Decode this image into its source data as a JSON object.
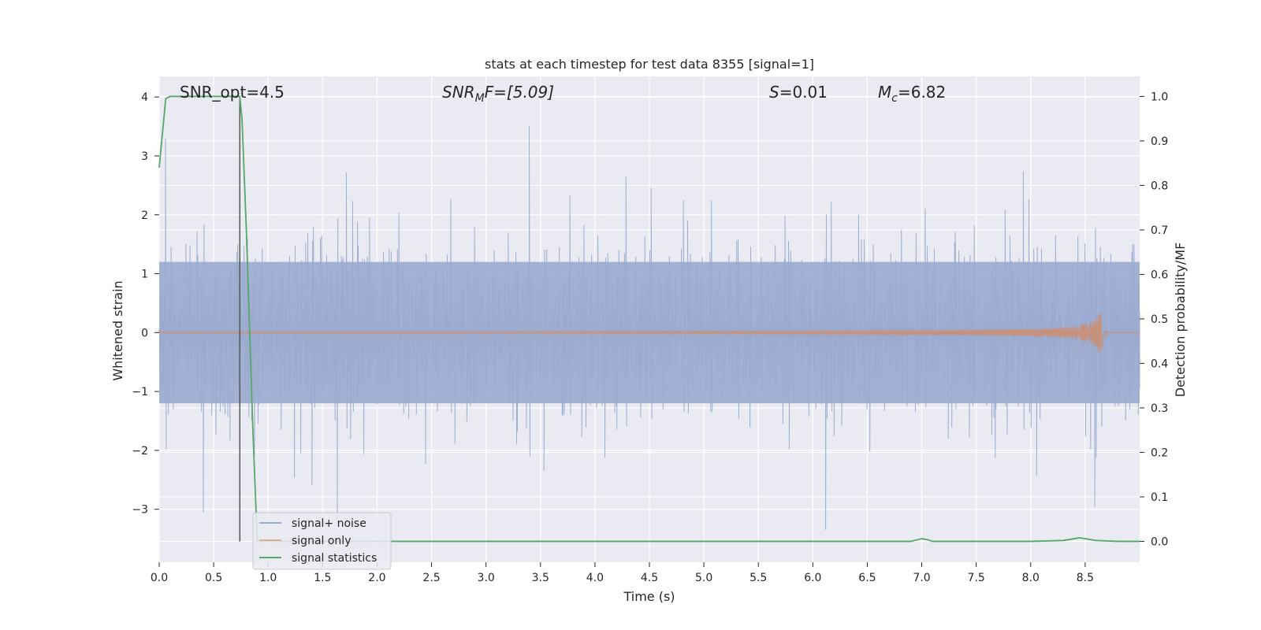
{
  "chart_data": {
    "type": "line",
    "title": "stats at each timestep for test data 8355 [signal=1]",
    "xlabel": "Time (s)",
    "ylabel_left": "Whitened strain",
    "ylabel_right": "Detection probability/MF",
    "xlim": [
      0.0,
      9.0
    ],
    "ylim_left": [
      -3.9,
      4.35
    ],
    "ylim_right": [
      -0.047,
      1.045
    ],
    "x_ticks": [
      "0.0",
      "0.5",
      "1.0",
      "1.5",
      "2.0",
      "2.5",
      "3.0",
      "3.5",
      "4.0",
      "4.5",
      "5.0",
      "5.5",
      "6.0",
      "6.5",
      "7.0",
      "7.5",
      "8.0",
      "8.5"
    ],
    "y_left_ticks": [
      "−3",
      "−2",
      "−1",
      "0",
      "1",
      "2",
      "3",
      "4"
    ],
    "y_right_ticks": [
      "0.0",
      "0.1",
      "0.2",
      "0.3",
      "0.4",
      "0.5",
      "0.6",
      "0.7",
      "0.8",
      "0.9",
      "1.0"
    ],
    "grid": true,
    "legend_position": "lower-left",
    "annotations": {
      "snr_opt": "SNR_opt=4.5",
      "snr_mf_main": "SNR",
      "snr_mf_sub": "M",
      "snr_mf_rest": "F=[5.09]",
      "s_main": "S",
      "s_rest": "=0.01",
      "mc_main": "M",
      "mc_sub": "c",
      "mc_rest": "=6.82"
    },
    "vline_x": 0.74,
    "series": [
      {
        "name": "signal+ noise",
        "axis": "left",
        "color": "#9aabcf",
        "description_values": {
          "envelope_min": -3.6,
          "envelope_max": 4.0,
          "typical_range": [
            -1.4,
            1.6
          ]
        }
      },
      {
        "name": "signal only",
        "axis": "left",
        "color": "#dd8452",
        "chirp": {
          "start_x": 0.0,
          "merger_x": 8.65,
          "peak_amplitude": 0.35,
          "end_x": 9.0
        }
      },
      {
        "name": "signal statistics",
        "axis": "right",
        "color": "#55a868",
        "x": [
          0.0,
          0.06,
          0.1,
          0.2,
          0.5,
          0.74,
          0.76,
          0.8,
          0.86,
          0.9,
          1.0,
          2.0,
          6.9,
          6.95,
          7.0,
          7.05,
          7.1,
          7.2,
          8.0,
          8.3,
          8.4,
          8.45,
          8.5,
          8.6,
          8.8,
          9.0
        ],
        "values": [
          0.84,
          0.995,
          1.0,
          1.0,
          1.0,
          1.0,
          0.95,
          0.7,
          0.25,
          0.0,
          0.0,
          0.0,
          0.0,
          0.003,
          0.006,
          0.004,
          0.0,
          0.0,
          0.0,
          0.002,
          0.006,
          0.008,
          0.006,
          0.002,
          0.0,
          0.0
        ]
      }
    ]
  }
}
